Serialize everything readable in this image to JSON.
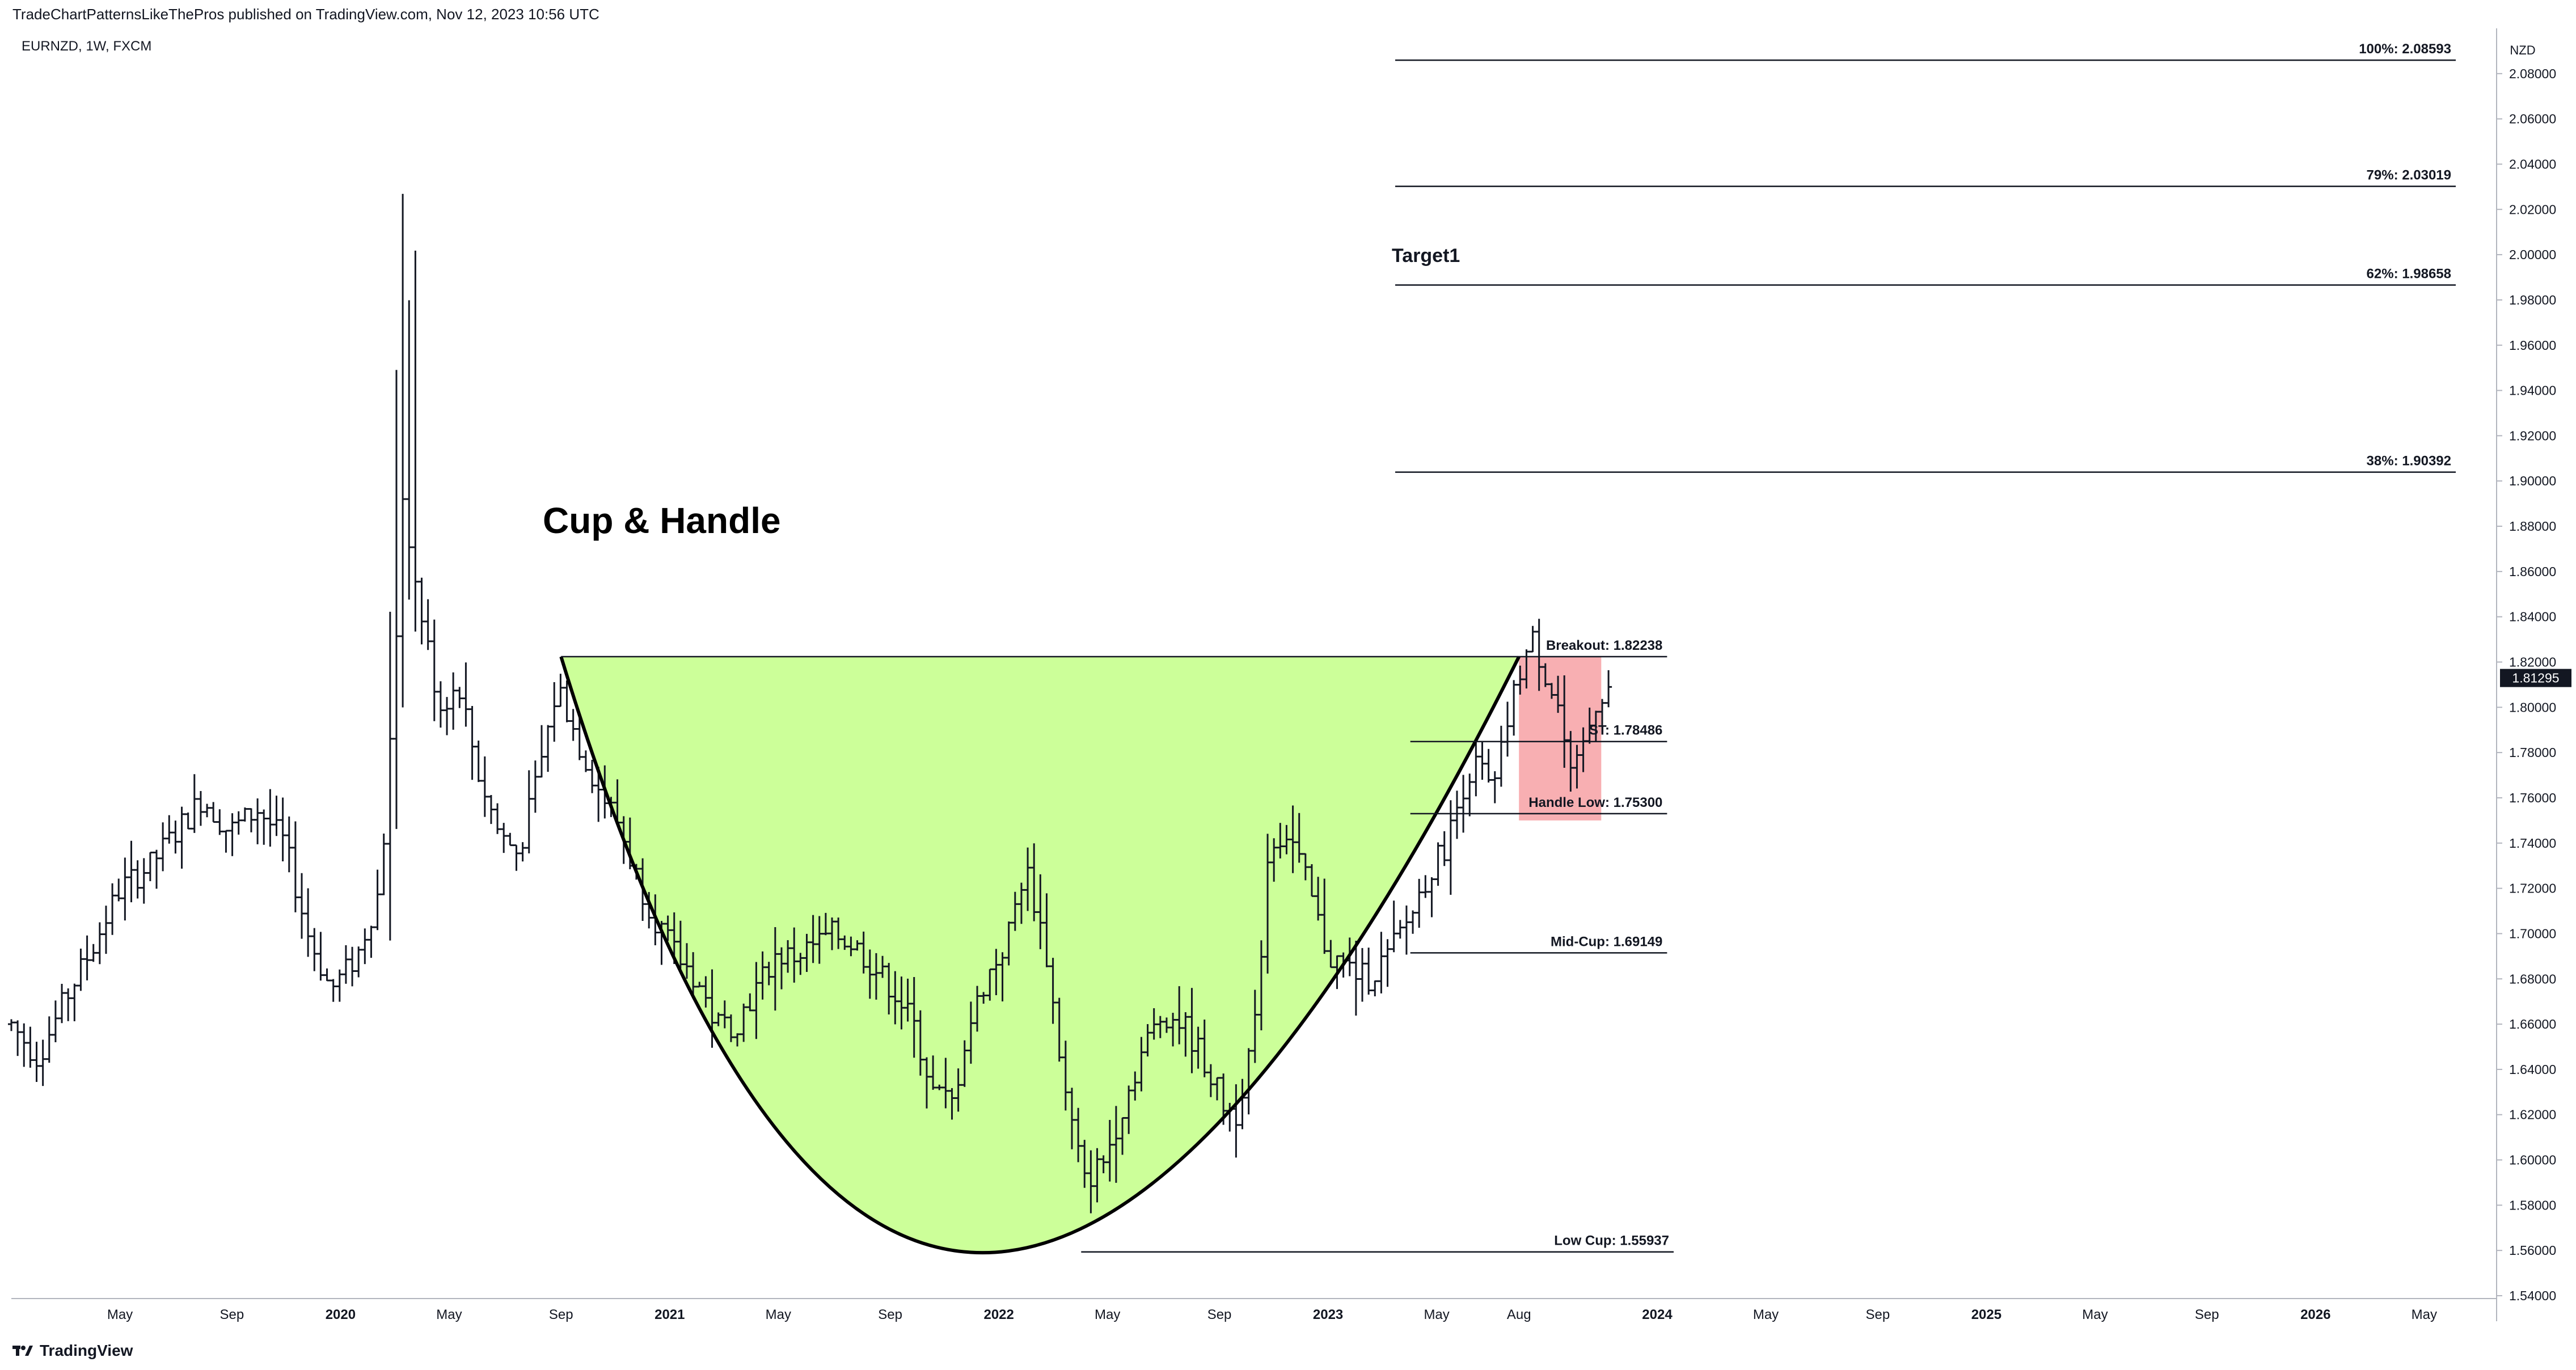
{
  "header": {
    "published": "TradeChartPatternsLikeThePros published on TradingView.com, Nov 12, 2023 10:56 UTC"
  },
  "symbol": {
    "label": "EURNZD, 1W, FXCM"
  },
  "footer": {
    "brand": "TradingView"
  },
  "chart_data": {
    "type": "bar",
    "title": "Cup & Handle",
    "currency": "NZD",
    "last_price": "1.81295",
    "last_price_color": "#131722",
    "ylim": [
      1.54,
      2.1
    ],
    "y_ticks": [
      "1.54000",
      "1.56000",
      "1.58000",
      "1.60000",
      "1.62000",
      "1.64000",
      "1.66000",
      "1.68000",
      "1.70000",
      "1.72000",
      "1.74000",
      "1.76000",
      "1.78000",
      "1.80000",
      "1.82000",
      "1.84000",
      "1.86000",
      "1.88000",
      "1.90000",
      "1.92000",
      "1.94000",
      "1.96000",
      "1.98000",
      "2.00000",
      "2.02000",
      "2.04000",
      "2.06000",
      "2.08000"
    ],
    "x_ticks": [
      {
        "label": "May",
        "t": 2019.33,
        "bold": false
      },
      {
        "label": "Sep",
        "t": 2019.67,
        "bold": false
      },
      {
        "label": "2020",
        "t": 2020.0,
        "bold": true
      },
      {
        "label": "May",
        "t": 2020.33,
        "bold": false
      },
      {
        "label": "Sep",
        "t": 2020.67,
        "bold": false
      },
      {
        "label": "2021",
        "t": 2021.0,
        "bold": true
      },
      {
        "label": "May",
        "t": 2021.33,
        "bold": false
      },
      {
        "label": "Sep",
        "t": 2021.67,
        "bold": false
      },
      {
        "label": "2022",
        "t": 2022.0,
        "bold": true
      },
      {
        "label": "May",
        "t": 2022.33,
        "bold": false
      },
      {
        "label": "Sep",
        "t": 2022.67,
        "bold": false
      },
      {
        "label": "2023",
        "t": 2023.0,
        "bold": true
      },
      {
        "label": "May",
        "t": 2023.33,
        "bold": false
      },
      {
        "label": "Aug",
        "t": 2023.58,
        "bold": false
      },
      {
        "label": "2024",
        "t": 2024.0,
        "bold": true
      },
      {
        "label": "May",
        "t": 2024.33,
        "bold": false
      },
      {
        "label": "Sep",
        "t": 2024.67,
        "bold": false
      },
      {
        "label": "2025",
        "t": 2025.0,
        "bold": true
      },
      {
        "label": "May",
        "t": 2025.33,
        "bold": false
      },
      {
        "label": "Sep",
        "t": 2025.67,
        "bold": false
      },
      {
        "label": "2026",
        "t": 2026.0,
        "bold": true
      },
      {
        "label": "May",
        "t": 2026.33,
        "bold": false
      }
    ],
    "price_path": [
      [
        2019.0,
        1.66
      ],
      [
        2019.08,
        1.645
      ],
      [
        2019.16,
        1.67
      ],
      [
        2019.25,
        1.695
      ],
      [
        2019.33,
        1.72
      ],
      [
        2019.42,
        1.73
      ],
      [
        2019.5,
        1.745
      ],
      [
        2019.58,
        1.76
      ],
      [
        2019.66,
        1.745
      ],
      [
        2019.75,
        1.755
      ],
      [
        2019.83,
        1.74
      ],
      [
        2019.9,
        1.7
      ],
      [
        2019.97,
        1.675
      ],
      [
        2020.05,
        1.69
      ],
      [
        2020.12,
        1.72
      ],
      [
        2020.15,
        1.78
      ],
      [
        2020.19,
        1.89
      ],
      [
        2020.22,
        1.86
      ],
      [
        2020.26,
        1.83
      ],
      [
        2020.3,
        1.8
      ],
      [
        2020.36,
        1.81
      ],
      [
        2020.42,
        1.77
      ],
      [
        2020.48,
        1.745
      ],
      [
        2020.54,
        1.735
      ],
      [
        2020.6,
        1.77
      ],
      [
        2020.66,
        1.81
      ],
      [
        2020.72,
        1.785
      ],
      [
        2020.78,
        1.765
      ],
      [
        2020.84,
        1.75
      ],
      [
        2020.9,
        1.725
      ],
      [
        2020.96,
        1.705
      ],
      [
        2021.02,
        1.69
      ],
      [
        2021.08,
        1.68
      ],
      [
        2021.14,
        1.66
      ],
      [
        2021.2,
        1.66
      ],
      [
        2021.26,
        1.675
      ],
      [
        2021.32,
        1.69
      ],
      [
        2021.38,
        1.69
      ],
      [
        2021.44,
        1.695
      ],
      [
        2021.5,
        1.7
      ],
      [
        2021.56,
        1.695
      ],
      [
        2021.62,
        1.685
      ],
      [
        2021.68,
        1.675
      ],
      [
        2021.74,
        1.66
      ],
      [
        2021.8,
        1.63
      ],
      [
        2021.86,
        1.625
      ],
      [
        2021.9,
        1.655
      ],
      [
        2021.96,
        1.68
      ],
      [
        2022.02,
        1.695
      ],
      [
        2022.08,
        1.73
      ],
      [
        2022.14,
        1.695
      ],
      [
        2022.2,
        1.63
      ],
      [
        2022.26,
        1.59
      ],
      [
        2022.32,
        1.6
      ],
      [
        2022.38,
        1.625
      ],
      [
        2022.44,
        1.65
      ],
      [
        2022.5,
        1.665
      ],
      [
        2022.56,
        1.66
      ],
      [
        2022.62,
        1.645
      ],
      [
        2022.68,
        1.625
      ],
      [
        2022.72,
        1.62
      ],
      [
        2022.78,
        1.66
      ],
      [
        2022.82,
        1.74
      ],
      [
        2022.88,
        1.745
      ],
      [
        2022.94,
        1.72
      ],
      [
        2023.0,
        1.69
      ],
      [
        2023.06,
        1.685
      ],
      [
        2023.12,
        1.68
      ],
      [
        2023.18,
        1.69
      ],
      [
        2023.24,
        1.705
      ],
      [
        2023.3,
        1.725
      ],
      [
        2023.36,
        1.74
      ],
      [
        2023.42,
        1.77
      ],
      [
        2023.46,
        1.775
      ],
      [
        2023.5,
        1.76
      ],
      [
        2023.54,
        1.79
      ],
      [
        2023.58,
        1.815
      ],
      [
        2023.62,
        1.83
      ],
      [
        2023.66,
        1.815
      ],
      [
        2023.7,
        1.8
      ],
      [
        2023.74,
        1.765
      ],
      [
        2023.78,
        1.785
      ],
      [
        2023.82,
        1.805
      ],
      [
        2023.86,
        1.81
      ]
    ],
    "cup": {
      "left": [
        2020.67,
        1.82238
      ],
      "bottom": [
        2021.95,
        1.559
      ],
      "right": [
        2023.58,
        1.82238
      ],
      "fill": "#ccff99"
    },
    "handle_box": {
      "t0": 2023.58,
      "t1": 2023.83,
      "top": 1.82238,
      "bottom": 1.75,
      "fill": "#f7a1a4"
    },
    "levels": [
      {
        "label": "Breakout: 1.82238",
        "value": 1.82238,
        "t0": 2020.67,
        "t1": 2024.03
      },
      {
        "label": "ST: 1.78486",
        "value": 1.78486,
        "t0": 2023.25,
        "t1": 2024.03
      },
      {
        "label": "Handle Low: 1.75300",
        "value": 1.753,
        "t0": 2023.25,
        "t1": 2024.03
      },
      {
        "label": "Mid-Cup: 1.69149",
        "value": 1.69149,
        "t0": 2023.25,
        "t1": 2024.03
      },
      {
        "label": "Low Cup: 1.55937",
        "value": 1.55937,
        "t0": 2022.25,
        "t1": 2024.05
      }
    ],
    "fib_levels": [
      {
        "label": "100%: 2.08593",
        "value": 2.08593
      },
      {
        "label": "79%: 2.03019",
        "value": 2.03019
      },
      {
        "label": "62%: 1.98658",
        "value": 1.98658
      },
      {
        "label": "38%: 1.90392",
        "value": 1.90392
      }
    ],
    "annotations": {
      "target": "Target1"
    }
  }
}
